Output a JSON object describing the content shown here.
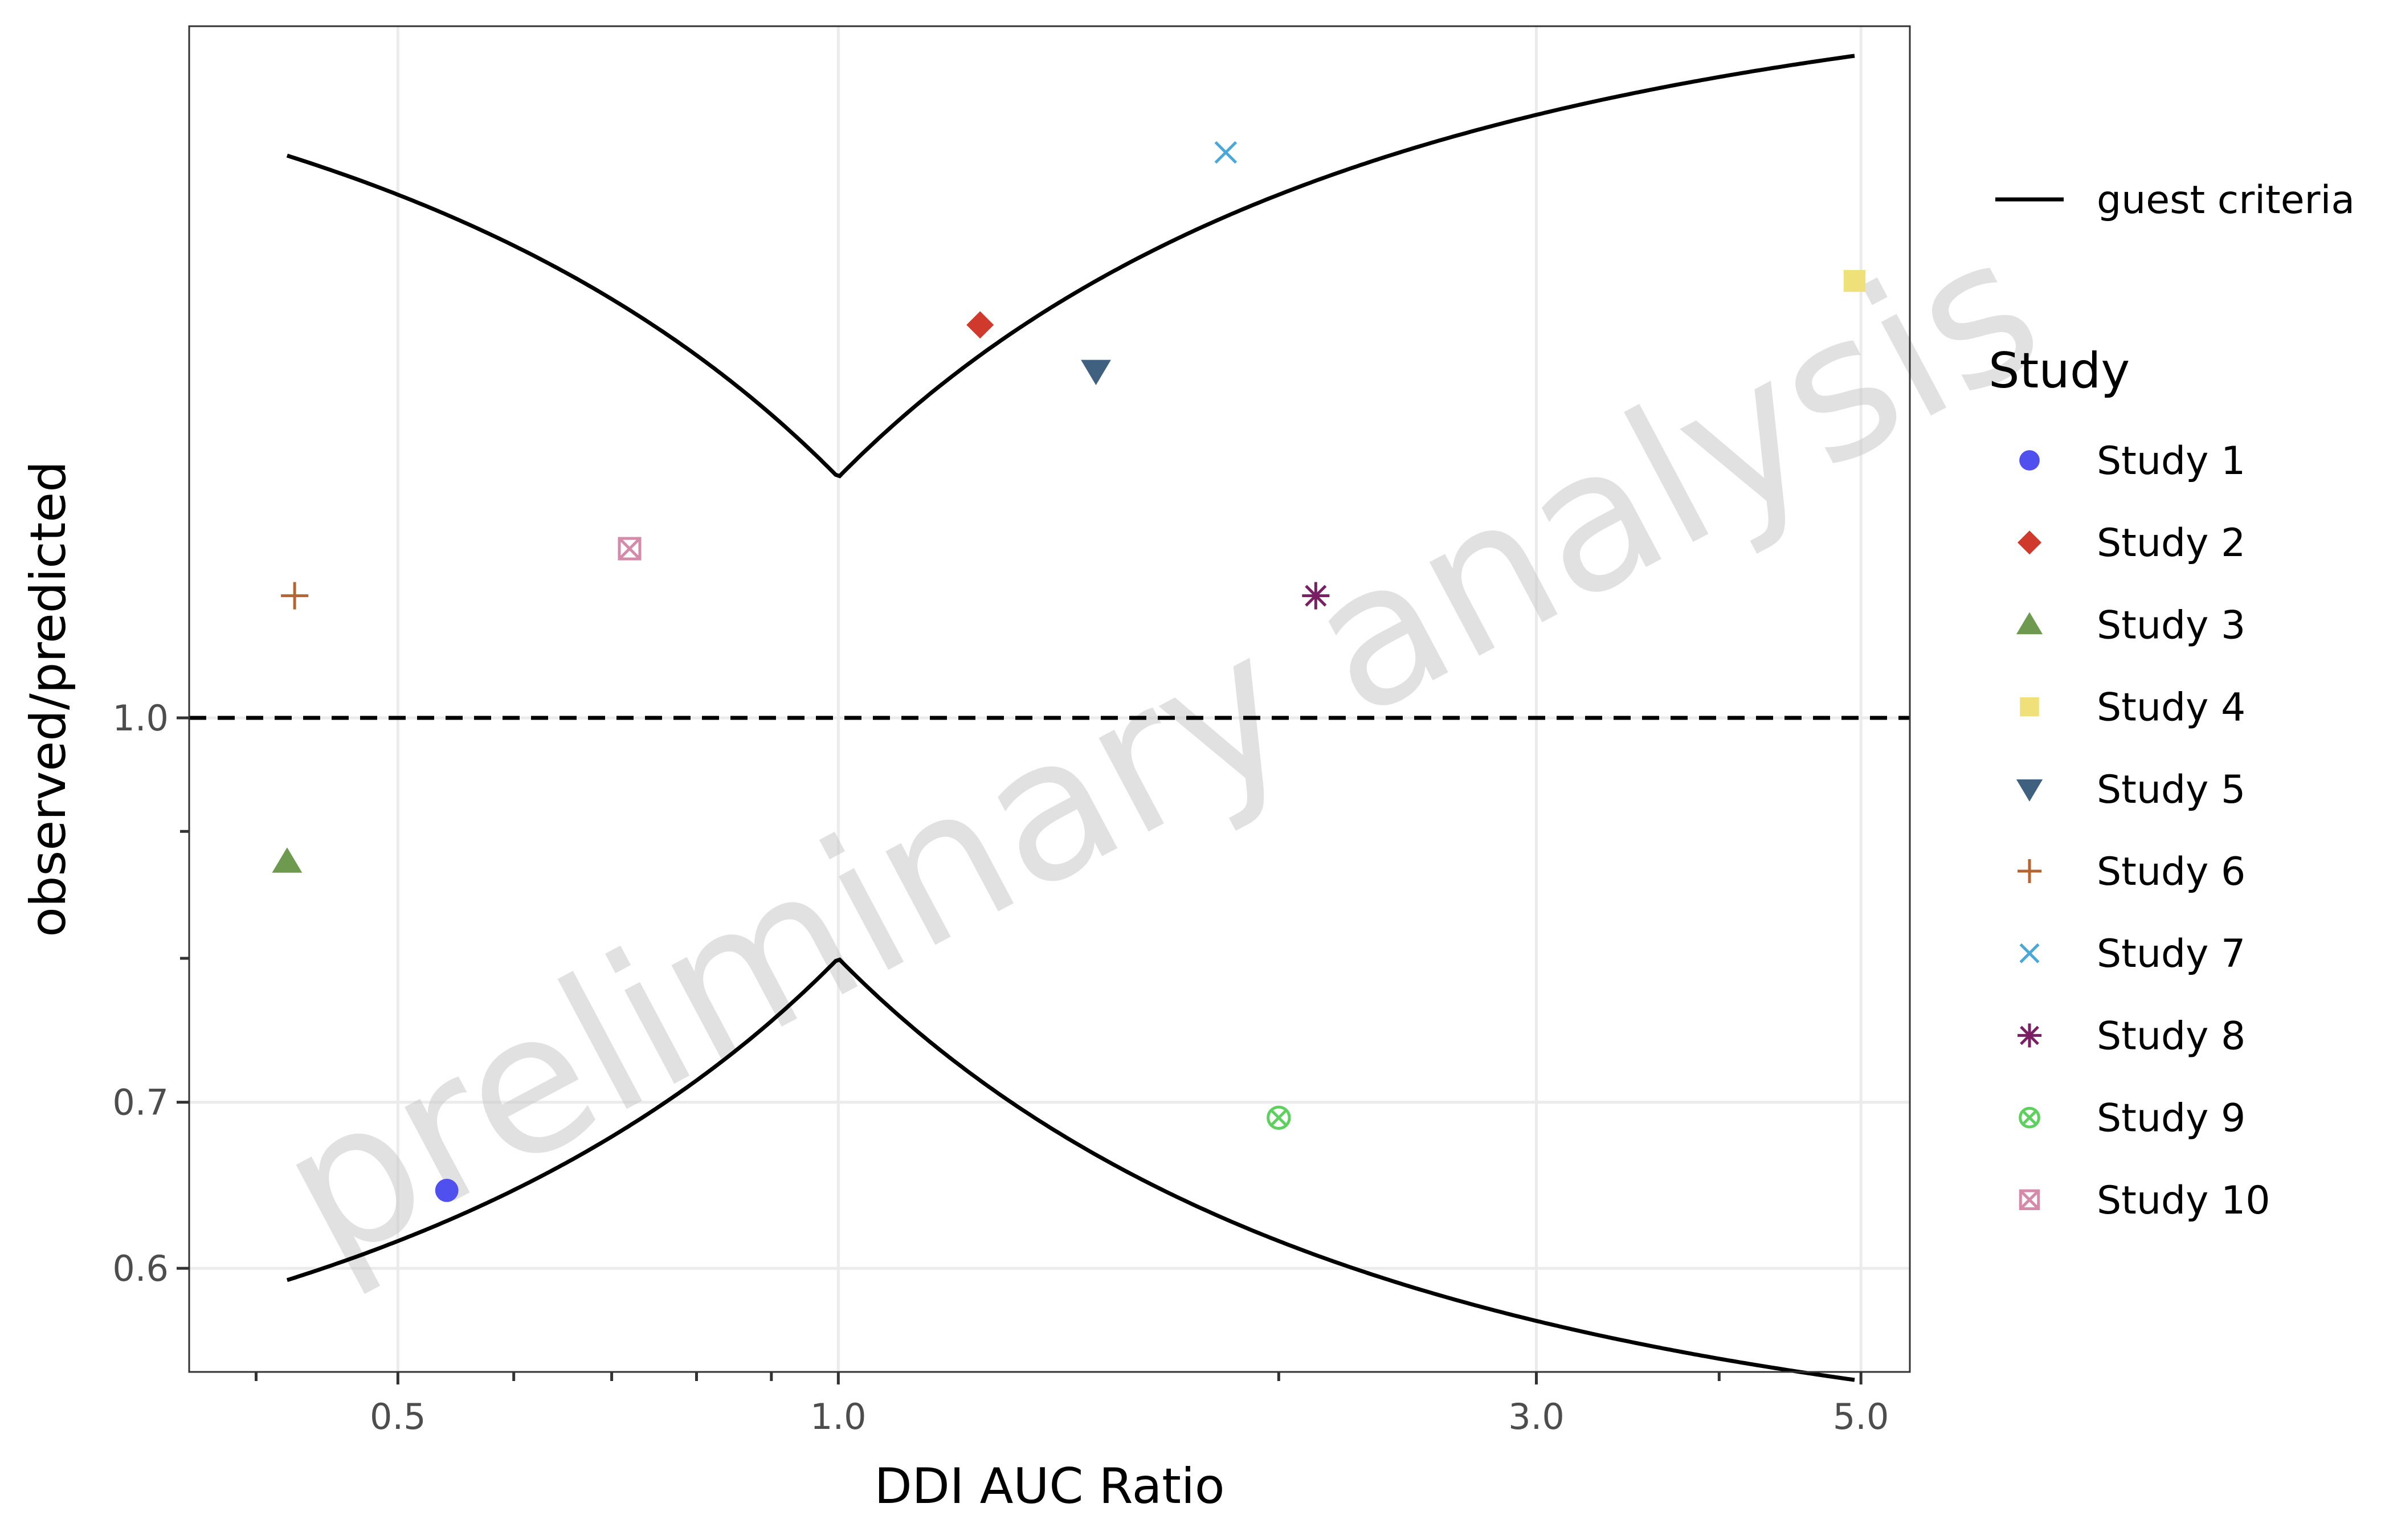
{
  "chart_data": {
    "type": "scatter",
    "xlabel": "DDI AUC Ratio",
    "ylabel": "observed/predicted",
    "x_scale": "log",
    "y_scale": "log",
    "xlim": [
      0.36,
      5.4
    ],
    "ylim": [
      0.545,
      1.9
    ],
    "x_ticks": [
      {
        "value": 0.5,
        "label": "0.5"
      },
      {
        "value": 1.0,
        "label": "1.0"
      },
      {
        "value": 3.0,
        "label": "3.0"
      },
      {
        "value": 5.0,
        "label": "5.0"
      }
    ],
    "x_minor_ticks": [
      0.4,
      0.6,
      0.7,
      0.8,
      0.9,
      2.0,
      4.0
    ],
    "y_ticks": [
      {
        "value": 0.6,
        "label": "0.6"
      },
      {
        "value": 0.7,
        "label": "0.7"
      },
      {
        "value": 1.0,
        "label": "1.0"
      }
    ],
    "y_minor_ticks": [
      0.8,
      0.9
    ],
    "grid": true,
    "watermark": "preliminary analysis",
    "reference_line": {
      "y": 1.0,
      "style": "dashed"
    },
    "criteria": {
      "name": "guest criteria",
      "delta": 1.25,
      "x_range": [
        0.42,
        4.95
      ]
    },
    "legend": {
      "position": "right",
      "line_label": "guest criteria",
      "title": "Study"
    },
    "series": [
      {
        "name": "Study 1",
        "x": 0.54,
        "y": 0.645,
        "shape": "circle",
        "color": "#5050ee"
      },
      {
        "name": "Study 2",
        "x": 1.25,
        "y": 1.44,
        "shape": "diamond",
        "color": "#d03a2c"
      },
      {
        "name": "Study 3",
        "x": 0.42,
        "y": 0.875,
        "shape": "triangle-up",
        "color": "#6e9a50"
      },
      {
        "name": "Study 4",
        "x": 4.95,
        "y": 1.5,
        "shape": "square",
        "color": "#f0e07a"
      },
      {
        "name": "Study 5",
        "x": 1.5,
        "y": 1.38,
        "shape": "triangle-down",
        "color": "#3f607e"
      },
      {
        "name": "Study 6",
        "x": 0.425,
        "y": 1.12,
        "shape": "plus",
        "color": "#b86430"
      },
      {
        "name": "Study 7",
        "x": 1.84,
        "y": 1.69,
        "shape": "cross",
        "color": "#4aa8d8"
      },
      {
        "name": "Study 8",
        "x": 2.12,
        "y": 1.12,
        "shape": "asterisk",
        "color": "#7a1f63"
      },
      {
        "name": "Study 9",
        "x": 2.0,
        "y": 0.69,
        "shape": "circle-cross",
        "color": "#5ed05e"
      },
      {
        "name": "Study 10",
        "x": 0.72,
        "y": 1.17,
        "shape": "square-cross",
        "color": "#d48aa8"
      }
    ]
  }
}
